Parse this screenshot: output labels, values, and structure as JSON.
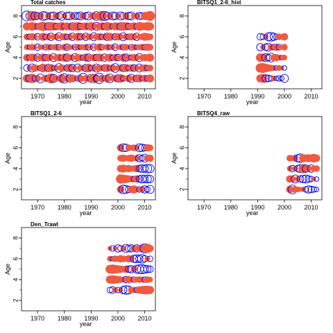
{
  "colors": {
    "positive": "#f05a40",
    "negative": "#0000ee",
    "frame": "#000000"
  },
  "chart_data": [
    {
      "type": "scatter",
      "title": "Total catches",
      "xlabel": "year",
      "ylabel": "Age",
      "xlim": [
        1964,
        2014
      ],
      "ylim": [
        1,
        9
      ],
      "xticks": [
        1970,
        1980,
        1990,
        2000,
        2010
      ],
      "yticks": [
        2,
        4,
        6,
        8
      ],
      "xticklabels": [
        "1970",
        "1980",
        "1990",
        "2000",
        "2010"
      ],
      "yticklabels": [
        "2",
        "4",
        "6",
        "8"
      ],
      "year_range": [
        1966,
        2012
      ],
      "ages": [
        2,
        3,
        4,
        5,
        6,
        7,
        8
      ],
      "residuals": [
        [
          0.6,
          -0.5,
          0.8,
          -0.3,
          0.4,
          -0.7,
          0.2,
          0.5,
          -0.4,
          0.9,
          -0.6,
          0.3,
          -0.2,
          0.7,
          -0.8,
          0.4,
          -0.5,
          0.6,
          0.2,
          -0.3,
          0.5,
          -0.9,
          0.4,
          0.3,
          -0.6,
          0.8,
          -0.4,
          -1.0,
          0.5,
          -0.2,
          0.6,
          -0.7,
          0.3,
          0.4,
          -0.5,
          0.7,
          -0.3,
          0.2,
          0.5,
          -0.6,
          0.3,
          -0.4,
          0.6,
          -0.2,
          0.5,
          -0.3,
          0.6
        ],
        [
          -0.4,
          0.3,
          -0.6,
          0.5,
          0.2,
          -0.3,
          0.7,
          0.4,
          -0.5,
          0.6,
          -0.2,
          0.3,
          -0.7,
          0.5,
          0.3,
          -0.4,
          0.6,
          -0.5,
          0.2,
          -0.6,
          0.4,
          0.3,
          -0.5,
          0.7,
          -0.3,
          0.4,
          -0.6,
          0.5,
          0.3,
          -0.4,
          0.6,
          -0.2,
          0.5,
          -0.7,
          0.3,
          0.4,
          -0.5,
          0.6,
          -0.3,
          0.5,
          -0.4,
          0.3,
          -0.6,
          0.4,
          0.5,
          -0.3,
          0.4
        ],
        [
          0.5,
          -0.3,
          0.6,
          0.4,
          -0.5,
          0.3,
          0.6,
          -0.4,
          0.5,
          0.3,
          -0.6,
          0.4,
          0.5,
          -0.3,
          0.6,
          -0.5,
          0.4,
          0.3,
          -0.6,
          0.5,
          0.4,
          -0.3,
          0.6,
          -0.5,
          0.3,
          0.5,
          -0.4,
          0.6,
          0.3,
          -0.5,
          0.4,
          0.6,
          -0.3,
          0.5,
          -0.4,
          0.3,
          0.6,
          -0.5,
          0.4,
          -0.3,
          0.5,
          0.4,
          -0.6,
          0.3,
          0.5,
          0.4,
          0.6
        ],
        [
          0.3,
          -0.2,
          0.4,
          0.2,
          -0.4,
          0.3,
          0.2,
          -0.3,
          0.4,
          -0.2,
          0.3,
          0.4,
          -0.3,
          0.2,
          0.4,
          -0.4,
          0.3,
          0.2,
          -0.3,
          0.4,
          -0.2,
          0.3,
          0.4,
          -0.3,
          0.2,
          -0.4,
          0.3,
          0.5,
          -0.3,
          0.2,
          0.4,
          -0.2,
          0.3,
          -0.4,
          0.2,
          0.3,
          -0.3,
          0.4,
          0.2,
          -0.3,
          0.4,
          -0.2,
          0.3,
          0.4,
          -0.3,
          0.5,
          0.4
        ],
        [
          0.4,
          -0.3,
          0.5,
          0.3,
          -0.4,
          0.2,
          0.6,
          -0.3,
          0.4,
          -0.5,
          0.3,
          0.4,
          -0.6,
          0.3,
          0.5,
          -0.3,
          0.4,
          -0.5,
          0.3,
          0.6,
          -0.4,
          0.3,
          -0.5,
          0.4,
          0.3,
          -0.6,
          0.4,
          0.5,
          -0.3,
          0.4,
          -0.5,
          0.6,
          0.3,
          -0.4,
          0.5,
          0.3,
          -0.6,
          0.4,
          -0.3,
          0.5,
          0.4,
          -0.5,
          0.3,
          0.4,
          0.6,
          0.5,
          0.4
        ],
        [
          0.6,
          0.4,
          0.7,
          0.5,
          -0.3,
          0.6,
          0.8,
          0.4,
          -0.5,
          0.7,
          0.6,
          -0.4,
          0.5,
          0.7,
          -0.3,
          0.6,
          0.4,
          -0.5,
          0.6,
          0.7,
          -0.4,
          0.5,
          0.6,
          -0.3,
          0.7,
          0.4,
          -0.6,
          0.5,
          0.6,
          -0.4,
          0.7,
          0.5,
          -0.3,
          0.6,
          0.4,
          -0.5,
          0.7,
          0.6,
          -0.4,
          0.5,
          0.6,
          -0.3,
          0.7,
          0.6,
          0.5,
          0.7,
          0.6
        ],
        [
          -0.9,
          -0.5,
          0.9,
          -0.6,
          -0.4,
          0.5,
          -0.7,
          -0.6,
          0.4,
          -0.5,
          -0.6,
          0.5,
          -0.4,
          -0.7,
          0.3,
          -0.5,
          -0.6,
          0.4,
          -0.5,
          -0.4,
          -0.6,
          0.5,
          -0.4,
          -0.6,
          0.3,
          0.5,
          -0.7,
          0.6,
          0.9,
          -0.8,
          -0.5,
          0.4,
          -0.6,
          -0.5,
          0.3,
          -0.6,
          -0.4,
          0.5,
          -0.5,
          -0.6,
          0.3,
          0.4,
          -0.5,
          -0.4,
          0.6,
          0.7,
          0.9
        ]
      ]
    },
    {
      "type": "scatter",
      "title": "BITSQ1_2-6_hist",
      "xlabel": "year",
      "ylabel": "Age",
      "xlim": [
        1964,
        2014
      ],
      "ylim": [
        1,
        9
      ],
      "xticks": [
        1970,
        1980,
        1990,
        2000,
        2010
      ],
      "yticks": [
        2,
        4,
        6,
        8
      ],
      "xticklabels": [
        "1970",
        "1980",
        "1990",
        "2000",
        "2010"
      ],
      "yticklabels": [
        "2",
        "4",
        "6",
        "8"
      ],
      "year_range": [
        1991,
        2000
      ],
      "ages": [
        2,
        3,
        4,
        5,
        6
      ],
      "residuals": [
        [
          0.6,
          0.7,
          -0.5,
          -0.4,
          -0.3,
          0.3,
          -0.2,
          -0.3,
          -0.2,
          -0.6
        ],
        [
          0.8,
          0.9,
          0.7,
          0.5,
          0.4,
          0.3,
          -0.2,
          0.3,
          0.2,
          -0.2
        ],
        [
          0.7,
          0.6,
          -0.6,
          -0.4,
          -0.7,
          0.4,
          0.5,
          0.3,
          -0.2,
          0.3
        ],
        [
          -0.5,
          0.3,
          -0.4,
          -0.6,
          0.4,
          -0.3,
          0.5,
          -0.3,
          0.2,
          0.4
        ],
        [
          -0.4,
          -0.3,
          0.3,
          -0.6,
          -0.7,
          -0.5,
          -0.3,
          0.4,
          0.3,
          0.5
        ]
      ]
    },
    {
      "type": "scatter",
      "title": "BITSQ1_2-6",
      "xlabel": "year",
      "ylabel": "Age",
      "xlim": [
        1964,
        2014
      ],
      "ylim": [
        1,
        9
      ],
      "xticks": [
        1970,
        1980,
        1990,
        2000,
        2010
      ],
      "yticks": [
        2,
        4,
        6,
        8
      ],
      "xticklabels": [
        "1970",
        "1980",
        "1990",
        "2000",
        "2010"
      ],
      "yticklabels": [
        "2",
        "4",
        "6",
        "8"
      ],
      "year_range": [
        2001,
        2012
      ],
      "ages": [
        2,
        3,
        4,
        5,
        6
      ],
      "residuals": [
        [
          0.5,
          -0.7,
          -0.6,
          -0.4,
          0.5,
          0.6,
          0.3,
          -0.3,
          0.4,
          -0.5,
          -0.3,
          -0.6
        ],
        [
          0.8,
          0.7,
          0.6,
          0.5,
          0.4,
          -0.3,
          0.5,
          -0.4,
          -0.6,
          -0.5,
          -0.6,
          -0.5
        ],
        [
          0.5,
          0.6,
          0.4,
          0.5,
          0.3,
          0.4,
          0.5,
          -0.4,
          -0.6,
          -0.5,
          -0.7,
          -0.6
        ],
        [
          0.4,
          0.5,
          0.3,
          0.4,
          0.5,
          0.3,
          0.4,
          -0.5,
          -0.3,
          -0.6,
          0.4,
          0.5
        ],
        [
          0.5,
          -0.6,
          -0.5,
          0.4,
          0.3,
          0.4,
          0.3,
          -0.6,
          -0.5,
          -0.4,
          0.5,
          0.4
        ]
      ]
    },
    {
      "type": "scatter",
      "title": "BITSQ4_raw",
      "xlabel": "year",
      "ylabel": "Age",
      "xlim": [
        1964,
        2014
      ],
      "ylim": [
        1,
        9
      ],
      "xticks": [
        1970,
        1980,
        1990,
        2000,
        2010
      ],
      "yticks": [
        2,
        4,
        6,
        8
      ],
      "xticklabels": [
        "1970",
        "1980",
        "1990",
        "2000",
        "2010"
      ],
      "yticklabels": [
        "2",
        "4",
        "6",
        "8"
      ],
      "year_range": [
        2002,
        2012
      ],
      "ages": [
        2,
        3,
        4,
        5
      ],
      "residuals": [
        [
          0.5,
          -0.7,
          0.4,
          0.3,
          0.2,
          0.2,
          -0.3,
          -0.5,
          -0.4,
          -0.3,
          -0.2
        ],
        [
          0.5,
          0.4,
          -0.6,
          0.3,
          -0.4,
          -0.5,
          -0.6,
          -0.4,
          -0.3,
          0.2,
          -0.2
        ],
        [
          0.3,
          -0.4,
          0.3,
          -0.4,
          -0.6,
          0.8,
          -0.5,
          0.4,
          -0.5,
          0.3,
          0.4
        ],
        [
          0.4,
          0.3,
          0.4,
          -0.5,
          -0.7,
          0.6,
          0.5,
          0.6,
          0.5,
          0.7,
          0.5
        ]
      ]
    },
    {
      "type": "scatter",
      "title": "Den_Trawl",
      "xlabel": "year",
      "ylabel": "Age",
      "xlim": [
        1964,
        2014
      ],
      "ylim": [
        1,
        9
      ],
      "xticks": [
        1970,
        1980,
        1990,
        2000,
        2010
      ],
      "yticks": [
        2,
        4,
        6,
        8
      ],
      "xticklabels": [
        "1970",
        "1980",
        "1990",
        "2000",
        "2010"
      ],
      "yticklabels": [
        "2",
        "4",
        "6",
        "8"
      ],
      "year_range": [
        1997,
        2012
      ],
      "ages": [
        3,
        4,
        5,
        6,
        7
      ],
      "residuals": [
        [
          -0.3,
          -0.4,
          0.3,
          -0.3,
          0.2,
          -0.5,
          -0.7,
          -0.6,
          0.4,
          0.3,
          -0.3,
          0.5,
          0.6,
          0.7,
          0.7,
          0.6
        ],
        [
          0.6,
          0.7,
          0.6,
          0.5,
          0.4,
          0.3,
          -0.4,
          0.5,
          0.3,
          -0.3,
          0.3,
          0.4,
          0.3,
          -0.3,
          0.4,
          0.3
        ],
        [
          0.7,
          0.8,
          0.7,
          0.6,
          0.5,
          0.4,
          0.5,
          -0.4,
          -0.5,
          0.4,
          -0.6,
          -0.7,
          -0.8,
          -0.6,
          -0.5,
          -0.4
        ],
        [
          0.3,
          -0.2,
          0.4,
          0.3,
          0.5,
          0.4,
          0.3,
          0.5,
          0.4,
          -0.5,
          -0.6,
          -0.5,
          -0.7,
          -0.4,
          0.3,
          -0.3
        ],
        [
          0.2,
          -0.3,
          0.2,
          -0.5,
          -0.3,
          0.3,
          -0.6,
          -0.4,
          -0.5,
          0.4,
          -0.5,
          0.5,
          0.6,
          -0.8,
          0.8,
          0.5
        ]
      ]
    }
  ]
}
